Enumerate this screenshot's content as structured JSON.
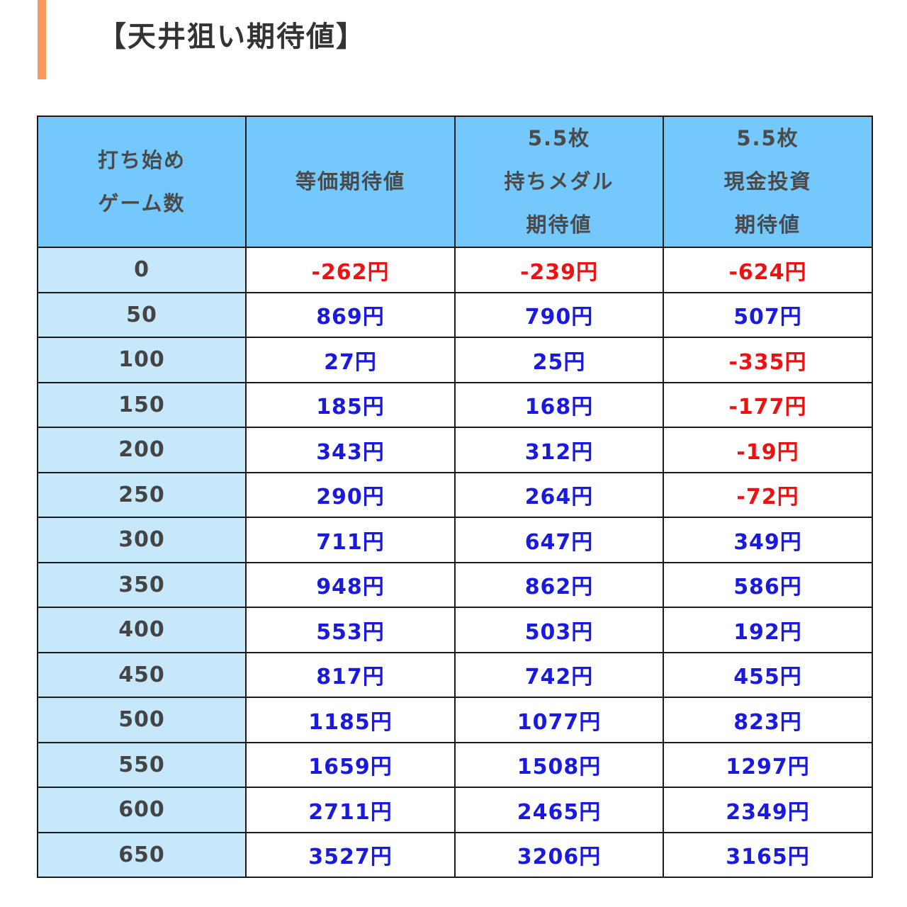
{
  "title": "【天井狙い期待値】",
  "colors": {
    "accent": "#f39a5c",
    "header_bg": "#74c8fb",
    "first_col_bg": "#c7e8fb",
    "positive": "#1a1adf",
    "negative": "#ee1111"
  },
  "table": {
    "headers": [
      [
        "打ち始め",
        "ゲーム数"
      ],
      [
        "等価期待値"
      ],
      [
        "5.5枚",
        "持ちメダル",
        "期待値"
      ],
      [
        "5.5枚",
        "現金投資",
        "期待値"
      ]
    ],
    "rows": [
      [
        "0",
        "-262円",
        "-239円",
        "-624円"
      ],
      [
        "50",
        "869円",
        "790円",
        "507円"
      ],
      [
        "100",
        "27円",
        "25円",
        "-335円"
      ],
      [
        "150",
        "185円",
        "168円",
        "-177円"
      ],
      [
        "200",
        "343円",
        "312円",
        "-19円"
      ],
      [
        "250",
        "290円",
        "264円",
        "-72円"
      ],
      [
        "300",
        "711円",
        "647円",
        "349円"
      ],
      [
        "350",
        "948円",
        "862円",
        "586円"
      ],
      [
        "400",
        "553円",
        "503円",
        "192円"
      ],
      [
        "450",
        "817円",
        "742円",
        "455円"
      ],
      [
        "500",
        "1185円",
        "1077円",
        "823円"
      ],
      [
        "550",
        "1659円",
        "1508円",
        "1297円"
      ],
      [
        "600",
        "2711円",
        "2465円",
        "2349円"
      ],
      [
        "650",
        "3527円",
        "3206円",
        "3165円"
      ]
    ]
  }
}
